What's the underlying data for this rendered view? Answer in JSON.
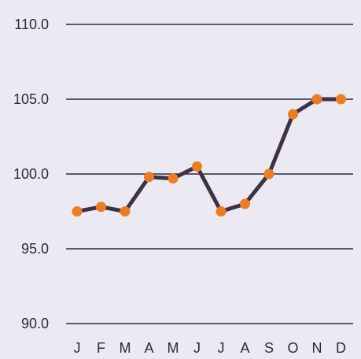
{
  "chart_data": {
    "type": "line",
    "title": "",
    "xlabel": "",
    "ylabel": "",
    "categories": [
      "J",
      "F",
      "M",
      "A",
      "M",
      "J",
      "J",
      "A",
      "S",
      "O",
      "N",
      "D"
    ],
    "values": [
      97.5,
      97.8,
      97.5,
      99.8,
      99.7,
      100.5,
      97.5,
      98.0,
      100.0,
      104.0,
      105.0,
      105.0
    ],
    "ylim": [
      90.0,
      110.0
    ],
    "yticks": [
      "110.0",
      "105.0",
      "100.0",
      "95.0",
      "90.0"
    ],
    "ytick_values": [
      110.0,
      105.0,
      100.0,
      95.0,
      90.0
    ],
    "grid": true,
    "legend": "none",
    "colors": {
      "background": "#ebe9f1",
      "line": "#3e3148",
      "marker": "#ee7d22",
      "grid": "#2e2a38",
      "text": "#2e2a38"
    }
  }
}
